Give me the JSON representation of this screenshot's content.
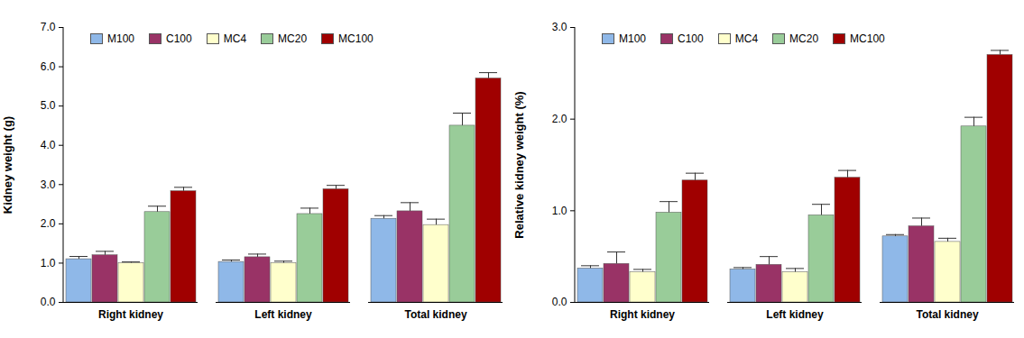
{
  "chart_data": [
    {
      "type": "bar",
      "y_label": "Kidney weight (g)",
      "categories": [
        "Right kidney",
        "Left kidney",
        "Total kidney"
      ],
      "series": [
        {
          "name": "M100",
          "color": "#8fb8e8",
          "values": [
            1.1,
            1.03,
            2.13
          ],
          "errors": [
            0.07,
            0.05,
            0.08
          ]
        },
        {
          "name": "C100",
          "color": "#993366",
          "values": [
            1.2,
            1.15,
            2.32
          ],
          "errors": [
            0.1,
            0.08,
            0.22
          ]
        },
        {
          "name": "MC4",
          "color": "#ffffcc",
          "values": [
            1.0,
            1.0,
            1.97
          ],
          "errors": [
            0.03,
            0.05,
            0.15
          ]
        },
        {
          "name": "MC20",
          "color": "#99cc99",
          "values": [
            2.3,
            2.25,
            4.5
          ],
          "errors": [
            0.15,
            0.15,
            0.32
          ]
        },
        {
          "name": "MC100",
          "color": "#a00000",
          "values": [
            2.83,
            2.88,
            5.7
          ],
          "errors": [
            0.1,
            0.1,
            0.15
          ]
        }
      ],
      "ylim": [
        0,
        7
      ],
      "yticks": [
        0,
        1,
        2,
        3,
        4,
        5,
        6,
        7
      ],
      "legend": "top"
    },
    {
      "type": "bar",
      "y_label": "Relative kidney weight (%)",
      "categories": [
        "Right kidney",
        "Left kidney",
        "Total kidney"
      ],
      "series": [
        {
          "name": "M100",
          "color": "#8fb8e8",
          "values": [
            0.37,
            0.36,
            0.72
          ],
          "errors": [
            0.03,
            0.02,
            0.02
          ]
        },
        {
          "name": "C100",
          "color": "#993366",
          "values": [
            0.42,
            0.41,
            0.83
          ],
          "errors": [
            0.13,
            0.09,
            0.09
          ]
        },
        {
          "name": "MC4",
          "color": "#ffffcc",
          "values": [
            0.33,
            0.33,
            0.66
          ],
          "errors": [
            0.03,
            0.04,
            0.04
          ]
        },
        {
          "name": "MC20",
          "color": "#99cc99",
          "values": [
            0.98,
            0.95,
            1.92
          ],
          "errors": [
            0.12,
            0.12,
            0.1
          ]
        },
        {
          "name": "MC100",
          "color": "#a00000",
          "values": [
            1.33,
            1.36,
            2.7
          ],
          "errors": [
            0.08,
            0.08,
            0.05
          ]
        }
      ],
      "ylim": [
        0,
        3
      ],
      "yticks": [
        0,
        1,
        2,
        3
      ],
      "legend": "top"
    }
  ]
}
